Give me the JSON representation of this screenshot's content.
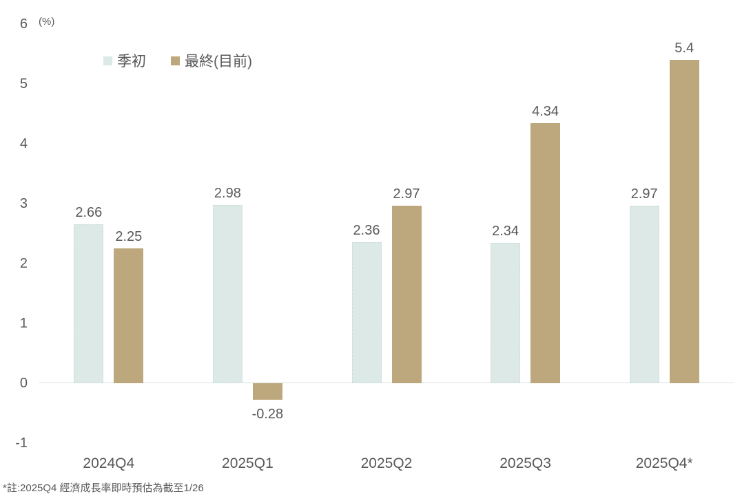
{
  "header": {
    "unit_label": "(%)"
  },
  "legend": {
    "items": [
      {
        "label": "季初",
        "color": "#dce9e7"
      },
      {
        "label": "最終(目前)",
        "color": "#bda87d"
      }
    ]
  },
  "footnote": "*註:2025Q4 經濟成長率即時預估為截至1/26",
  "colors": {
    "series_initial": "#dce9e7",
    "series_final": "#bda87d",
    "text_gray": "#595959",
    "zero_line": "#d7e1df"
  },
  "chart_data": {
    "type": "bar",
    "title": "",
    "xlabel": "",
    "ylabel": "(%)",
    "categories": [
      "2024Q4",
      "2025Q1",
      "2025Q2",
      "2025Q3",
      "2025Q4*"
    ],
    "series": [
      {
        "key": "initial",
        "name": "季初",
        "color": "#dce9e7",
        "values": [
          2.66,
          2.98,
          2.36,
          2.34,
          2.97
        ]
      },
      {
        "key": "final",
        "name": "最終(目前)",
        "color": "#bda87d",
        "values": [
          2.25,
          -0.28,
          2.97,
          4.34,
          5.4
        ]
      }
    ],
    "yticks": [
      6,
      5,
      4,
      3,
      2,
      1,
      0,
      -1
    ],
    "ylim": [
      -1,
      6
    ],
    "grid": false,
    "legend_position": "top-left",
    "data_labels": true
  }
}
